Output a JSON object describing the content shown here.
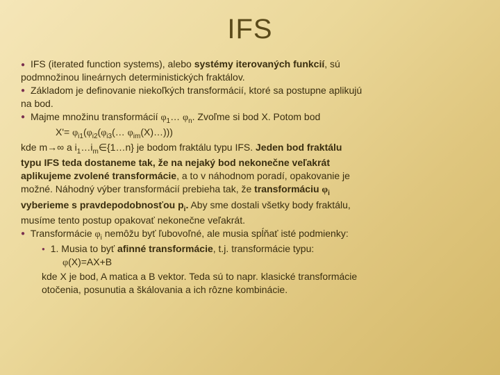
{
  "title": "IFS",
  "lines": {
    "l1a": "IFS (iterated function systems)",
    "l1b": ", alebo ",
    "l1c": "systémy iterovaných funkcií",
    "l1d": ", sú",
    "l2": "podmnožinou lineárnych deterministických fraktálov.",
    "l3": "Základom je definovanie niekoľkých transformácií, ktoré sa postupne aplikujú",
    "l4": "na bod.",
    "l5a": "Majme množinu transformácií ",
    "l5phi1": "φ",
    "l5s1": "1",
    "l5dots": "… ",
    "l5phin": "φ",
    "l5sn": "n",
    "l5b": ". Zvoľme si bod X. Potom bod",
    "l6a": "X'= ",
    "l6p1": "φ",
    "l6i1": "i1",
    "l6b": "(",
    "l6p2": "φ",
    "l6i2": "i2",
    "l6c": "(",
    "l6p3": "φ",
    "l6i3": "i3",
    "l6d": "(… ",
    "l6pm": "φ",
    "l6im": "im",
    "l6e": "(X)…)))",
    "l7a": "kde m→∞ a i",
    "l7s1": "1",
    "l7b": "…i",
    "l7sm": "m",
    "l7c": "∈{1…n} je bodom fraktálu typu IFS. ",
    "l7d": "Jeden bod fraktálu",
    "l8": "typu IFS teda dostaneme tak, že na nejaký bod nekonečne veľakrát",
    "l9a": "aplikujeme zvolené transformácie",
    "l9b": ", a to v náhodnom poradí, opakovanie je",
    "l10a": "možné. Náhodný výber transformácií prebieha tak, že ",
    "l10b": "transformáciu ",
    "l10phi": "φ",
    "l10i": "i",
    "l11a": "vyberieme s pravdepodobnosťou p",
    "l11i": "i",
    "l11b": ".",
    "l11c": " Aby sme dostali všetky body fraktálu,",
    "l12": "musíme tento postup opakovať nekonečne veľakrát.",
    "l13a": "Transformácie ",
    "l13phi": "φ",
    "l13i": "i",
    "l13b": " nemôžu byť ľubovoľné, ale musia spĺňať isté podmienky:",
    "l14a": "1. Musia to byť ",
    "l14b": "afinné transformácie",
    "l14c": ", t.j. transformácie typu:",
    "l15": "φ(X)=AX+B",
    "l16": "kde X je bod, A matica a B vektor. Teda sú to napr. klasické transformácie",
    "l17": "otočenia, posunutia a škálovania a ich rôzne kombinácie."
  }
}
